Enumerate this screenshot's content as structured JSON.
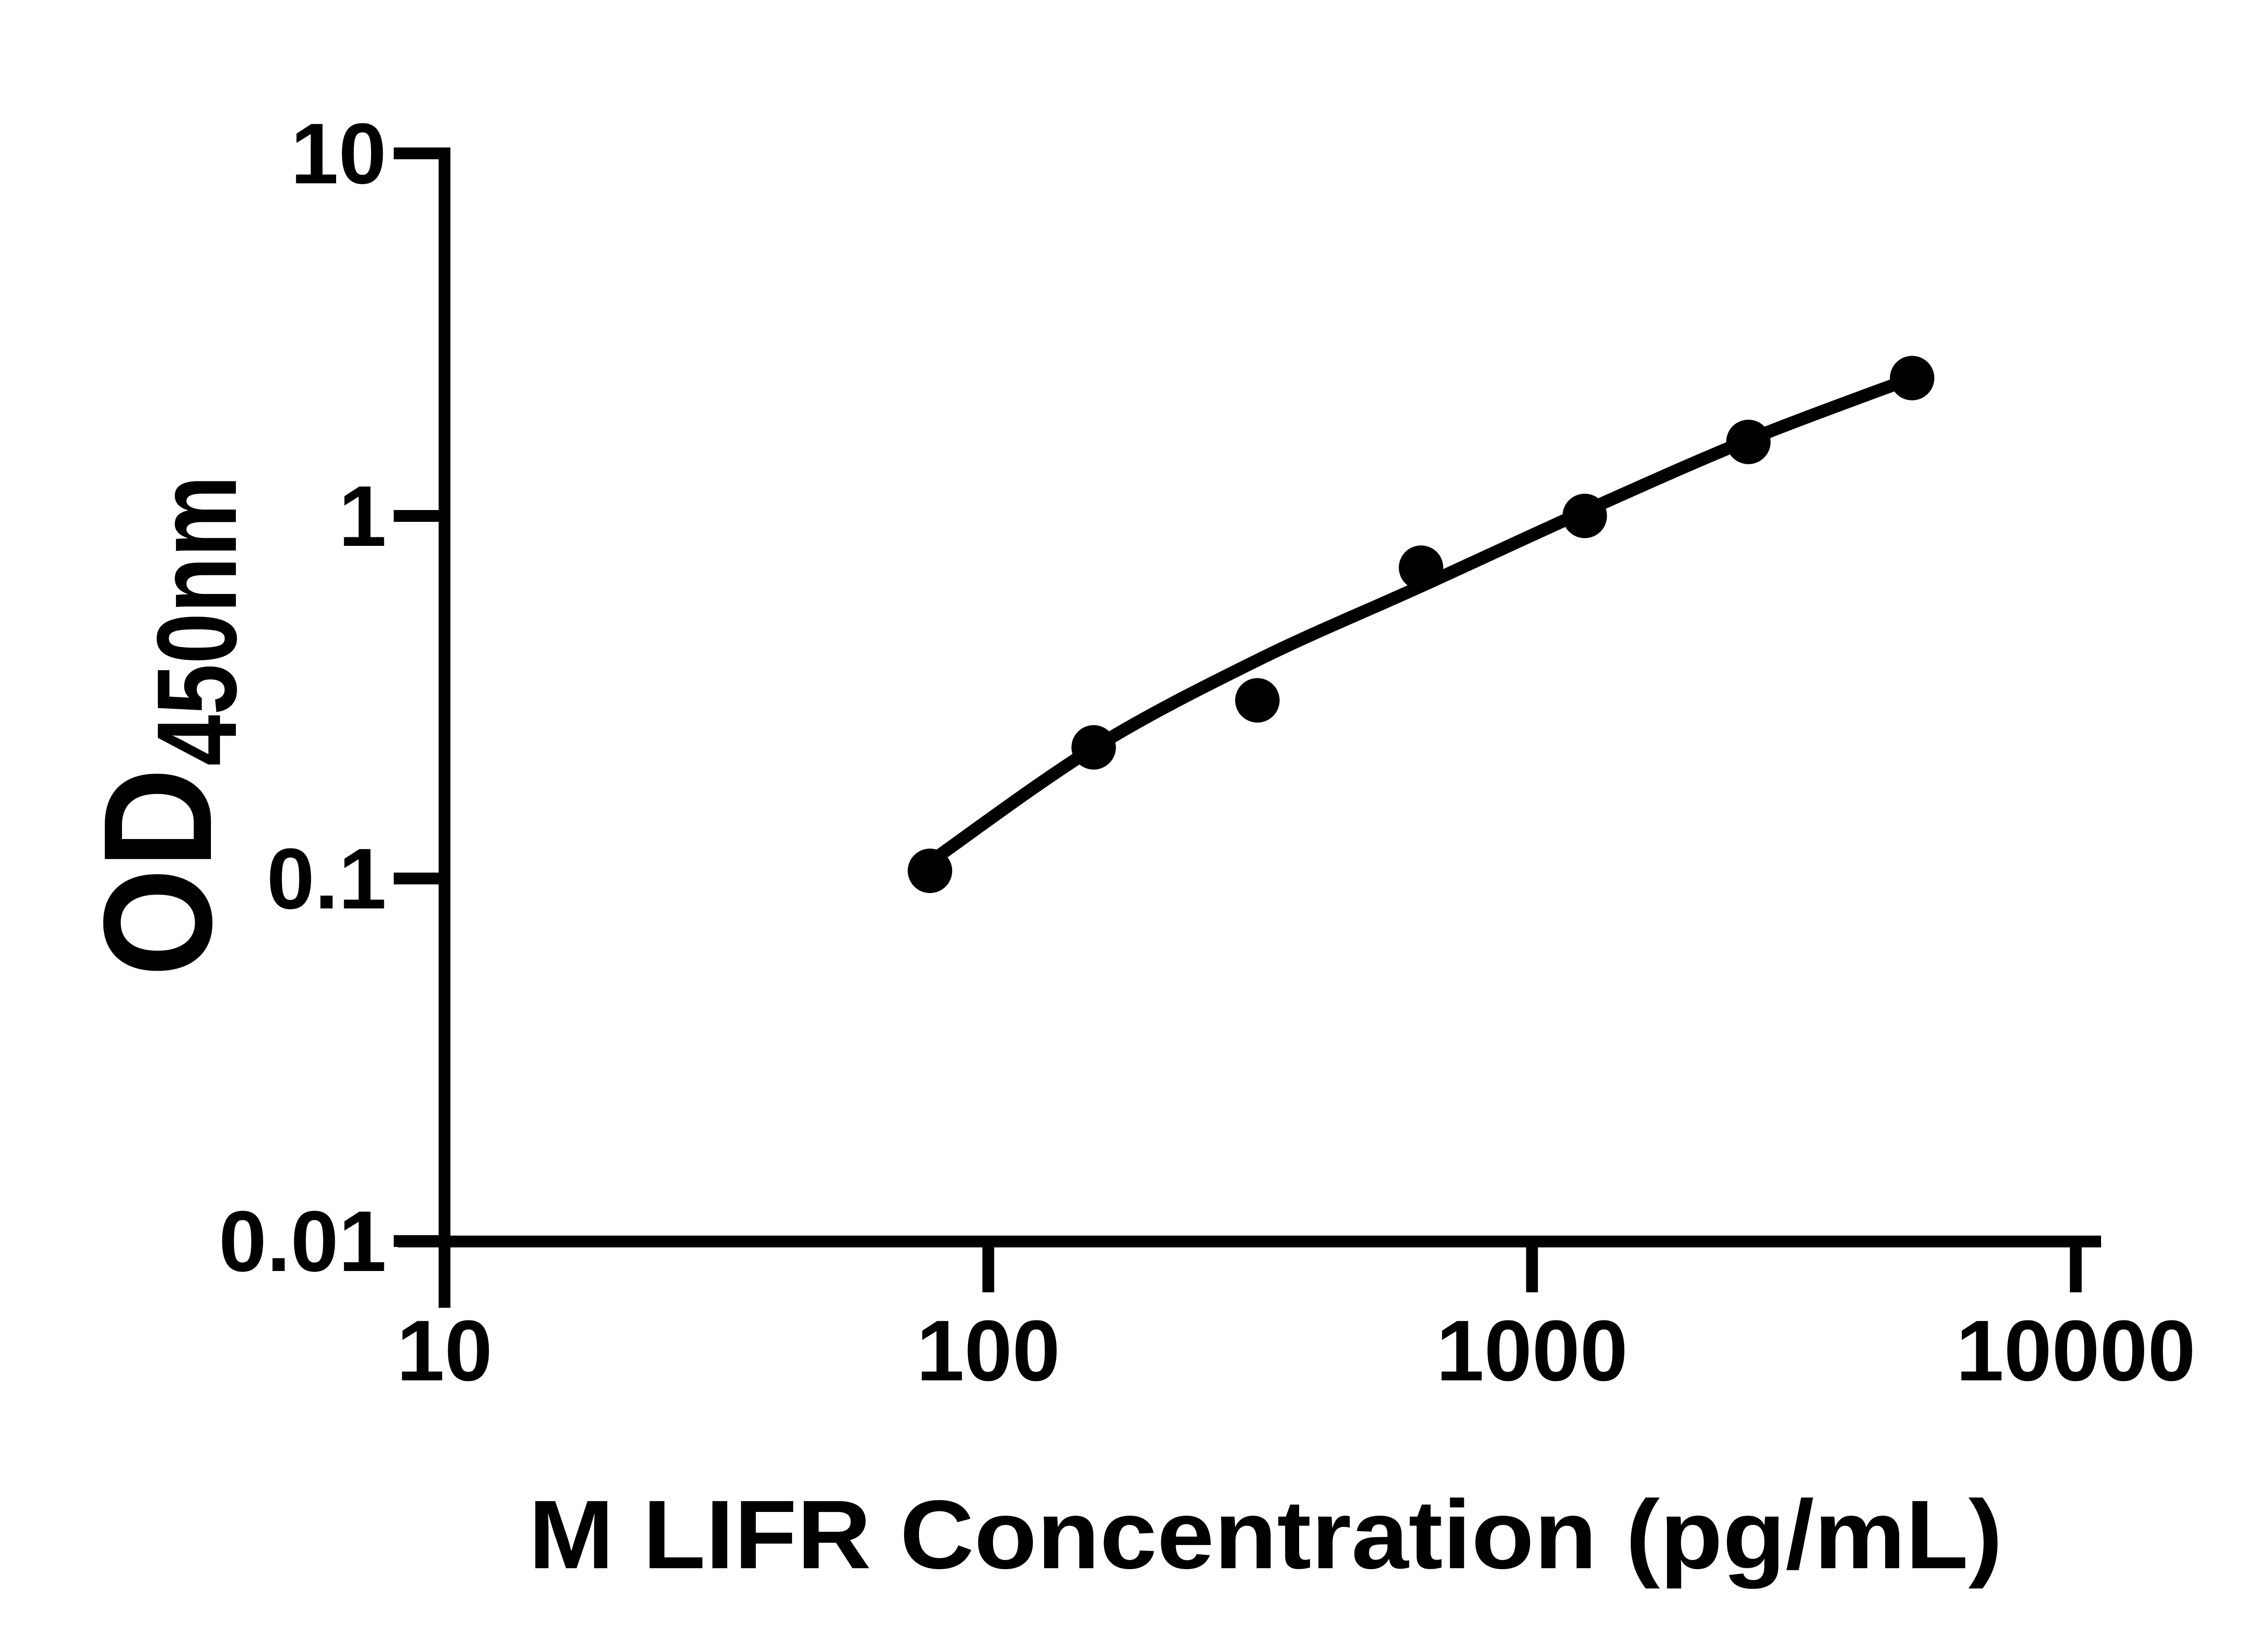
{
  "figure": {
    "background_color": "#ffffff",
    "ink_color": "#000000"
  },
  "chart_data": {
    "type": "scatter",
    "title": "",
    "xlabel": "M LIFR Concentration (pg/mL)",
    "ylabel_main": "OD",
    "ylabel_sub": "450nm",
    "x_scale": "log10",
    "y_scale": "log10",
    "xlim": [
      10,
      10000
    ],
    "ylim": [
      0.01,
      10
    ],
    "grid": "off",
    "legend": "none",
    "x_ticks": {
      "values": [
        10,
        100,
        1000,
        10000
      ],
      "labels": [
        "10",
        "100",
        "1000",
        "10000"
      ]
    },
    "y_ticks": {
      "values": [
        10,
        1,
        0.1,
        0.01
      ],
      "labels": [
        "10",
        "1",
        "0.1",
        "0.01"
      ]
    },
    "series": [
      {
        "name": "standard-curve-points",
        "marker": "filled-circle",
        "color": "#000000",
        "x": [
          78.125,
          156.25,
          312.5,
          625,
          1250,
          2500,
          5000
        ],
        "y": [
          0.105,
          0.23,
          0.31,
          0.72,
          1.0,
          1.6,
          2.4
        ]
      }
    ],
    "fit_curve": {
      "name": "four-parameter-logistic-fit",
      "color": "#000000",
      "x": [
        78.125,
        156.25,
        312.5,
        625,
        1250,
        2500,
        5000
      ],
      "y": [
        0.111,
        0.229,
        0.4,
        0.64,
        1.03,
        1.62,
        2.4
      ]
    }
  }
}
